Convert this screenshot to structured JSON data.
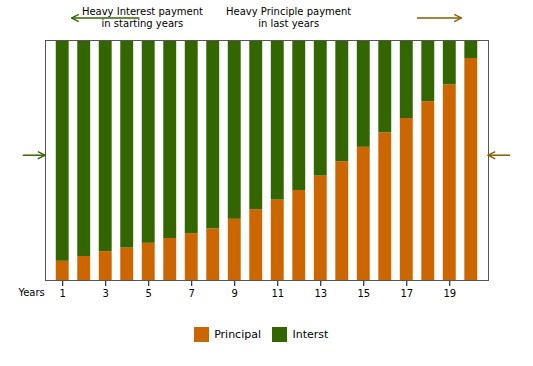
{
  "chart_data": {
    "type": "bar",
    "stacked": true,
    "x": [
      1,
      2,
      3,
      4,
      5,
      6,
      7,
      8,
      9,
      10,
      11,
      12,
      13,
      14,
      15,
      16,
      17,
      18,
      19,
      20
    ],
    "xlim": [
      0.2,
      20.8
    ],
    "xticks": [
      1,
      3,
      5,
      7,
      9,
      11,
      13,
      15,
      17,
      19
    ],
    "ylim": [
      0,
      1.0
    ],
    "xlabel": "Years",
    "tick_labels": "x",
    "grid": false,
    "legend": "bottom",
    "series": [
      {
        "name": "Principal",
        "color": "#CC6600",
        "values": [
          0.08,
          0.1,
          0.12,
          0.135,
          0.155,
          0.175,
          0.195,
          0.215,
          0.255,
          0.295,
          0.335,
          0.375,
          0.435,
          0.495,
          0.555,
          0.615,
          0.675,
          0.745,
          0.815,
          0.925
        ]
      },
      {
        "name": "Interst",
        "color": "#336600",
        "values": [
          0.92,
          0.9,
          0.88,
          0.865,
          0.845,
          0.825,
          0.805,
          0.785,
          0.745,
          0.705,
          0.665,
          0.625,
          0.565,
          0.505,
          0.445,
          0.385,
          0.325,
          0.255,
          0.185,
          0.075
        ]
      }
    ],
    "annotations": [
      {
        "text": "Heavy Interest payment\nin starting years",
        "color": "#336600"
      },
      {
        "text": "Heavy Principle payment\nin last years",
        "color": "#8B5A00"
      }
    ]
  }
}
